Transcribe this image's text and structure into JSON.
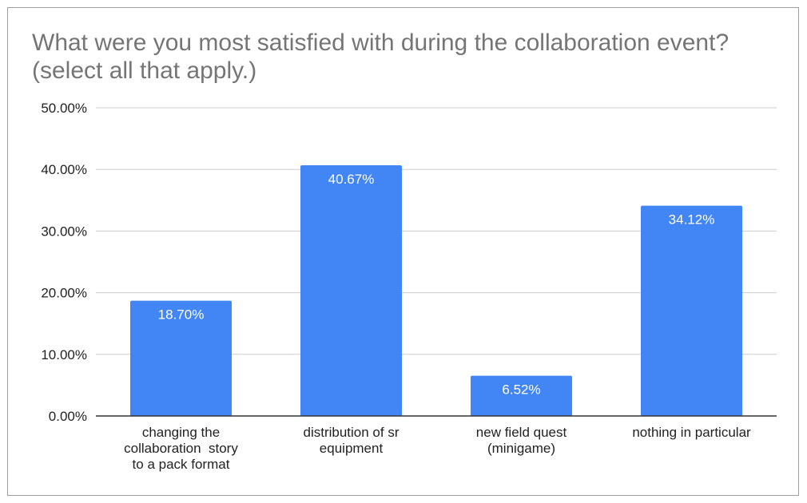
{
  "chart_data": {
    "type": "bar",
    "title": "What were you most satisfied with during the collaboration event? (select all that apply.)",
    "xlabel": "",
    "ylabel": "",
    "ylim": [
      0,
      50
    ],
    "yticks": [
      "0.00%",
      "10.00%",
      "20.00%",
      "30.00%",
      "40.00%",
      "50.00%"
    ],
    "grid": true,
    "legend": "none",
    "bar_color": "#4285f4",
    "categories": [
      [
        "changing the",
        "collaboration  story",
        "to a pack format"
      ],
      [
        "distribution of sr",
        "equipment"
      ],
      [
        "new field quest",
        "(minigame)"
      ],
      [
        "nothing in particular"
      ]
    ],
    "values": [
      18.7,
      40.67,
      6.52,
      34.12
    ],
    "value_labels": [
      "18.70%",
      "40.67%",
      "6.52%",
      "34.12%"
    ]
  }
}
